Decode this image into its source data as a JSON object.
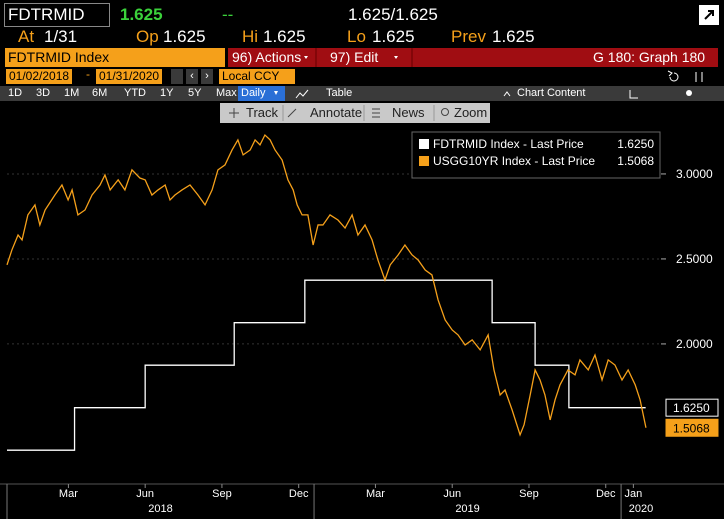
{
  "quote": {
    "ticker": "FDTRMID",
    "last": "1.625",
    "change": "--",
    "bid_ask": "1.625/1.625",
    "fields": [
      {
        "label": "At",
        "value": "1/31"
      },
      {
        "label": "Op",
        "value": "1.625"
      },
      {
        "label": "Hi",
        "value": "1.625"
      },
      {
        "label": "Lo",
        "value": "1.625"
      },
      {
        "label": "Prev",
        "value": "1.625"
      }
    ]
  },
  "menu": {
    "security": "FDTRMID Index",
    "actions": "96) Actions",
    "edit": "97) Edit",
    "page": "G 180: Graph 180"
  },
  "range": {
    "start": "01/02/2018",
    "end": "01/31/2020",
    "currency": "Local CCY"
  },
  "toolbar": {
    "periods": [
      "1D",
      "3D",
      "1M",
      "6M",
      "YTD",
      "1Y",
      "5Y",
      "Max"
    ],
    "frequency": "Daily",
    "table": "Table",
    "chart_content": "Chart Content"
  },
  "tools": [
    "Track",
    "Annotate",
    "News",
    "Zoom"
  ],
  "chart_data": {
    "type": "line",
    "legend": "upper right",
    "grid": true,
    "xlim": [
      2018.0,
      2020.13
    ],
    "ylim": [
      1.176,
      3.435
    ],
    "yticks": [
      {
        "value": 2.0,
        "label": "2.0000"
      },
      {
        "value": 2.5,
        "label": "2.5000"
      },
      {
        "value": 3.0,
        "label": "3.0000"
      }
    ],
    "xticks": [
      {
        "value": 2018.2,
        "label": "Mar"
      },
      {
        "value": 2018.45,
        "label": "Jun"
      },
      {
        "value": 2018.7,
        "label": "Sep"
      },
      {
        "value": 2018.95,
        "label": "Dec"
      },
      {
        "value": 2019.2,
        "label": "Mar"
      },
      {
        "value": 2019.45,
        "label": "Jun"
      },
      {
        "value": 2019.7,
        "label": "Sep"
      },
      {
        "value": 2019.95,
        "label": "Dec"
      },
      {
        "value": 2020.04,
        "label": "Jan"
      }
    ],
    "year_ticks": [
      {
        "value": 2018,
        "label": "2018"
      },
      {
        "value": 2019,
        "label": "2019"
      },
      {
        "value": 2020,
        "label": "2020"
      }
    ],
    "series": [
      {
        "name": "FDTRMID Index - Last Price",
        "color": "#ffffff",
        "step": "post",
        "last_label": "1.6250",
        "x": [
          2018.0,
          2018.22,
          2018.45,
          2018.74,
          2018.97,
          2019.58,
          2019.72,
          2019.83,
          2020.08
        ],
        "values": [
          1.375,
          1.625,
          1.875,
          2.125,
          2.375,
          2.125,
          1.875,
          1.625,
          1.625
        ]
      },
      {
        "name": "USGG10YR Index - Last Price",
        "color": "#f5a01a",
        "last_label": "1.5068",
        "x": [
          2018.0,
          2018.016,
          2018.036,
          2018.049,
          2018.068,
          2018.091,
          2018.107,
          2018.124,
          2018.156,
          2018.179,
          2018.199,
          2018.212,
          2018.231,
          2018.254,
          2018.277,
          2018.303,
          2018.319,
          2018.336,
          2018.362,
          2018.384,
          2018.407,
          2018.433,
          2018.45,
          2018.472,
          2018.492,
          2018.515,
          2018.531,
          2018.547,
          2018.57,
          2018.596,
          2018.622,
          2018.645,
          2018.668,
          2018.687,
          2018.71,
          2018.733,
          2018.752,
          2018.769,
          2018.792,
          2018.808,
          2018.824,
          2018.84,
          2018.857,
          2018.873,
          2018.896,
          2018.915,
          2018.932,
          2018.945,
          2018.961,
          2018.98,
          2018.997,
          2019.013,
          2019.029,
          2019.052,
          2019.078,
          2019.101,
          2019.124,
          2019.143,
          2019.166,
          2019.189,
          2019.208,
          2019.231,
          2019.248,
          2019.274,
          2019.296,
          2019.319,
          2019.339,
          2019.362,
          2019.384,
          2019.404,
          2019.427,
          2019.45,
          2019.469,
          2019.492,
          2019.515,
          2019.541,
          2019.567,
          2019.586,
          2019.606,
          2019.622,
          2019.645,
          2019.671,
          2019.684,
          2019.704,
          2019.72,
          2019.736,
          2019.752,
          2019.769,
          2019.785,
          2019.801,
          2019.827,
          2019.85,
          2019.866,
          2019.893,
          2019.915,
          2019.938,
          2019.958,
          2019.98,
          2020.003,
          2020.023,
          2020.046,
          2020.062,
          2020.081
        ],
        "values": [
          2.465,
          2.553,
          2.641,
          2.612,
          2.759,
          2.818,
          2.7,
          2.788,
          2.876,
          2.935,
          2.847,
          2.906,
          2.759,
          2.788,
          2.876,
          2.935,
          2.994,
          2.906,
          2.965,
          2.906,
          3.024,
          2.976,
          2.965,
          2.876,
          2.906,
          2.935,
          2.847,
          2.876,
          2.906,
          2.935,
          2.876,
          2.818,
          2.906,
          3.024,
          3.053,
          3.141,
          3.2,
          3.112,
          3.141,
          3.2,
          3.171,
          3.229,
          3.2,
          3.141,
          3.082,
          2.965,
          2.906,
          2.818,
          2.759,
          2.759,
          2.582,
          2.7,
          2.7,
          2.759,
          2.729,
          2.682,
          2.759,
          2.641,
          2.7,
          2.612,
          2.494,
          2.376,
          2.465,
          2.524,
          2.582,
          2.524,
          2.494,
          2.435,
          2.406,
          2.259,
          2.141,
          2.082,
          2.053,
          1.994,
          2.024,
          1.965,
          2.053,
          1.847,
          1.7,
          1.729,
          1.612,
          1.465,
          1.524,
          1.7,
          1.847,
          1.788,
          1.7,
          1.553,
          1.671,
          1.759,
          1.847,
          1.818,
          1.906,
          1.847,
          1.935,
          1.788,
          1.906,
          1.876,
          1.788,
          1.847,
          1.759,
          1.671,
          1.5068
        ]
      }
    ]
  }
}
